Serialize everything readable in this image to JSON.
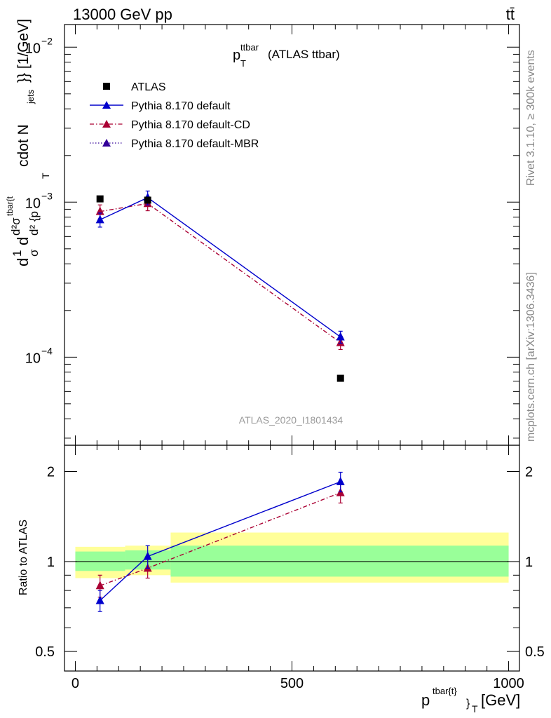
{
  "header": {
    "left": "13000 GeV pp",
    "right": "tt̄"
  },
  "side_labels": {
    "rivet": "Rivet 3.1.10, ≥ 300k events",
    "mcplots": "mcplots.cern.ch [arXiv:1306.3436]"
  },
  "colors": {
    "data": "#000000",
    "default": "#0000cc",
    "cd": "#aa0033",
    "mbr": "#330099",
    "band_inner": "#99ff99",
    "band_outer": "#ffff99"
  },
  "chart_data": [
    {
      "type": "line",
      "name": "main",
      "title_main": "p",
      "title_sup": "ttbar",
      "title_sub": "T",
      "title_rest": "(ATLAS ttbar)",
      "analysis_label": "ATLAS_2020_I1801434",
      "y_scale": "log",
      "ylim": [
        2.7e-05,
        0.014
      ],
      "xlim": [
        -25,
        1025
      ],
      "ylabel": "d1/σ d²σ^tbar{t} / d² {p_T^tbar{t} cdot N_jets}} [1/GeV]",
      "ylabel_parts": {
        "frac1": "d",
        "frac1_top": "1",
        "frac1_bot": "σ",
        "frac2_top": "d",
        "frac2_mid": "d²σ",
        "frac2_sup": "tbar{t",
        "frac2_bot": "d² {p",
        "sub_t": "T",
        "rest": "cdot N",
        "rest_sub": "jets",
        "rest2": "}} [1/GeV]"
      },
      "y_ticks": [
        {
          "value": 0.01,
          "base": "10",
          "exp": "−2"
        },
        {
          "value": 0.001,
          "base": "10",
          "exp": "−3"
        },
        {
          "value": 0.0001,
          "base": "10",
          "exp": "−4"
        }
      ],
      "legend": [
        {
          "label": "ATLAS",
          "marker": "square",
          "style": "none",
          "key": "data"
        },
        {
          "label": "Pythia 8.170 default",
          "marker": "triangle",
          "style": "solid",
          "key": "default"
        },
        {
          "label": "Pythia 8.170 default-CD",
          "marker": "triangle",
          "style": "dashdot",
          "key": "cd"
        },
        {
          "label": "Pythia 8.170 default-MBR",
          "marker": "triangle",
          "style": "dotted",
          "key": "mbr"
        }
      ],
      "series": [
        {
          "name": "ATLAS",
          "key": "data",
          "x": [
            57,
            167,
            612
          ],
          "y": [
            0.00105,
            0.00103,
            7.3e-05
          ],
          "yerr": [
            0,
            0,
            0
          ]
        },
        {
          "name": "Pythia 8.170 default",
          "key": "default",
          "x": [
            57,
            167,
            612
          ],
          "y": [
            0.00077,
            0.00107,
            0.000135
          ],
          "yerr": [
            8e-05,
            0.00011,
            1.2e-05
          ]
        },
        {
          "name": "Pythia 8.170 default-CD",
          "key": "cd",
          "x": [
            57,
            167,
            612
          ],
          "y": [
            0.00087,
            0.00098,
            0.000124
          ],
          "yerr": [
            9e-05,
            0.0001,
            1.2e-05
          ]
        }
      ]
    },
    {
      "type": "line",
      "name": "ratio",
      "y_scale": "log",
      "ylabel": "Ratio to ATLAS",
      "xlabel_main": "p",
      "xlabel_sup": "tbar{t}",
      "xlabel_sub": "}",
      "xlabel_sub2": "T",
      "xlabel_unit": "[GeV]",
      "xlim": [
        -25,
        1025
      ],
      "ylim": [
        0.43,
        2.45
      ],
      "x_ticks": [
        0,
        500,
        1000
      ],
      "x_tick_labels": [
        "0",
        "500",
        "1000"
      ],
      "y_ticks": [
        0.5,
        1,
        2
      ],
      "y_tick_labels": [
        "0.5",
        "1",
        "2"
      ],
      "band_bins": [
        {
          "x0": 0,
          "x1": 115,
          "inner": [
            0.93,
            1.08
          ],
          "outer": [
            0.88,
            1.12
          ]
        },
        {
          "x0": 115,
          "x1": 220,
          "inner": [
            0.94,
            1.09
          ],
          "outer": [
            0.9,
            1.13
          ]
        },
        {
          "x0": 220,
          "x1": 1000,
          "inner": [
            0.89,
            1.13
          ],
          "outer": [
            0.85,
            1.25
          ]
        }
      ],
      "series": [
        {
          "name": "Pythia 8.170 default",
          "key": "default",
          "x": [
            57,
            167,
            612
          ],
          "y": [
            0.74,
            1.04,
            1.85
          ],
          "yerr": [
            0.06,
            0.09,
            0.14
          ]
        },
        {
          "name": "Pythia 8.170 default-CD",
          "key": "cd",
          "x": [
            57,
            167,
            612
          ],
          "y": [
            0.83,
            0.95,
            1.7
          ],
          "yerr": [
            0.07,
            0.07,
            0.13
          ]
        }
      ]
    }
  ]
}
